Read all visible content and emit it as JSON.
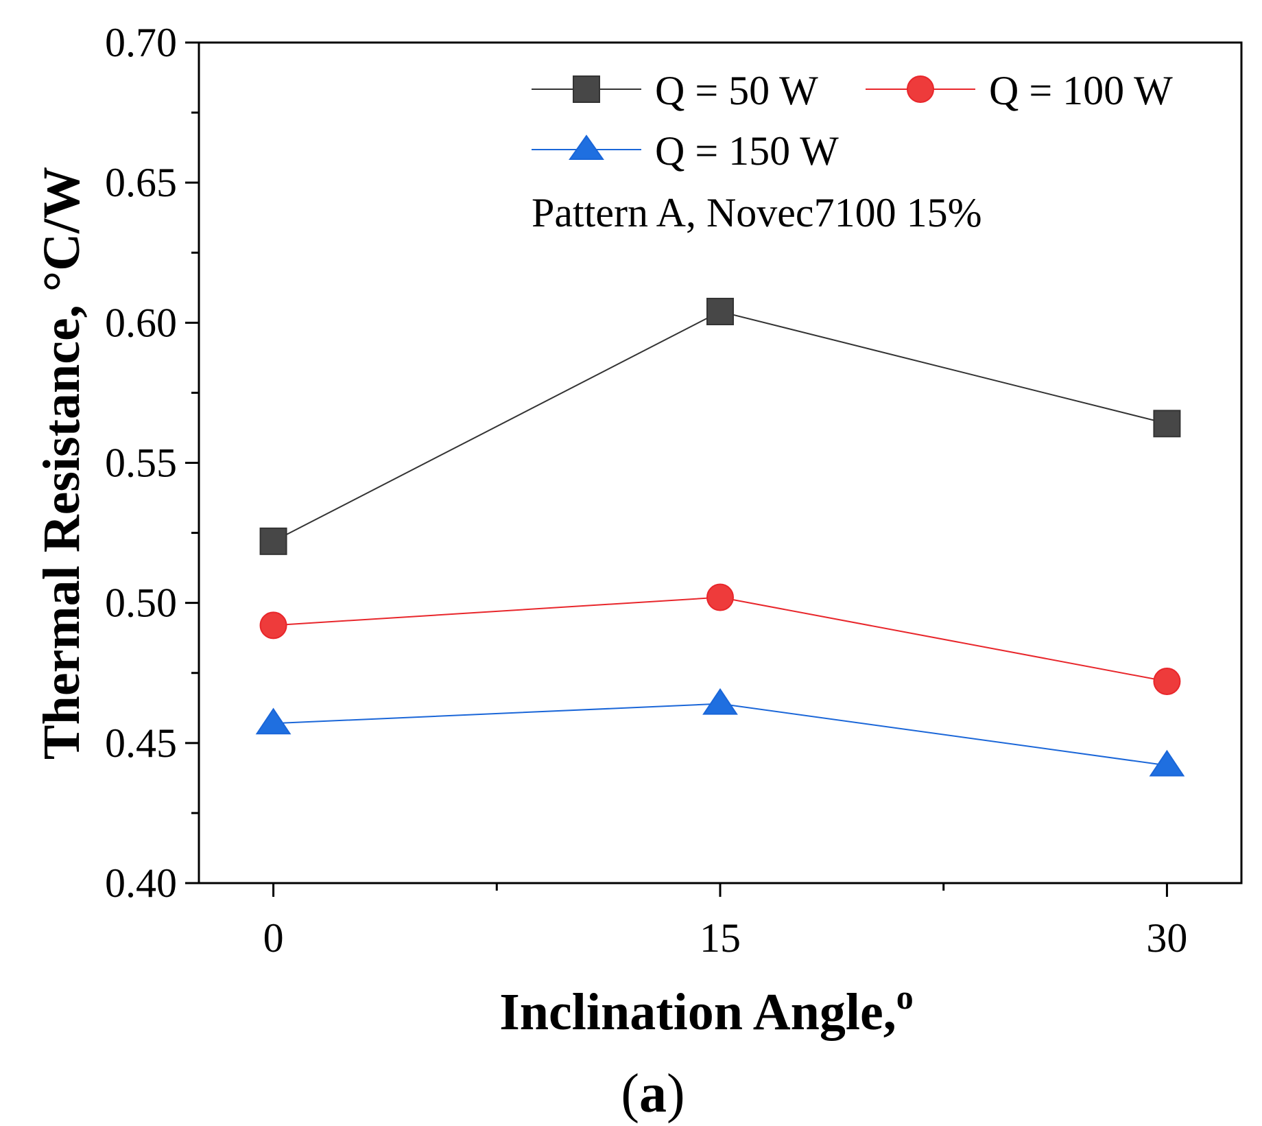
{
  "chart_data": {
    "type": "line",
    "title": "",
    "xlabel": "Inclination Angle,",
    "xlabel_superscript": "o",
    "ylabel": "Thermal Resistance, °C/W",
    "x": [
      0,
      15,
      30
    ],
    "x_tick_labels": [
      "0",
      "15",
      "30"
    ],
    "xlim": [
      -2.5,
      32.5
    ],
    "ylim": [
      0.4,
      0.7
    ],
    "y_ticks": [
      0.4,
      0.45,
      0.5,
      0.55,
      0.6,
      0.65,
      0.7
    ],
    "y_tick_labels": [
      "0.40",
      "0.45",
      "0.50",
      "0.55",
      "0.60",
      "0.65",
      "0.70"
    ],
    "grid": false,
    "legend_position": "top-right",
    "series": [
      {
        "name": "Q = 50 W",
        "marker": "square",
        "color": "#474747",
        "line_color": "#333333",
        "values": [
          0.522,
          0.604,
          0.564
        ]
      },
      {
        "name": "Q = 100 W",
        "marker": "circle",
        "color": "#ee3b3b",
        "line_color": "#e8262b",
        "values": [
          0.492,
          0.502,
          0.472
        ]
      },
      {
        "name": "Q = 150 W",
        "marker": "triangle",
        "color": "#1f6fe0",
        "line_color": "#1a66d8",
        "values": [
          0.457,
          0.464,
          0.442
        ]
      }
    ],
    "annotation": "Pattern A, Novec7100 15%",
    "caption": "(a)"
  }
}
